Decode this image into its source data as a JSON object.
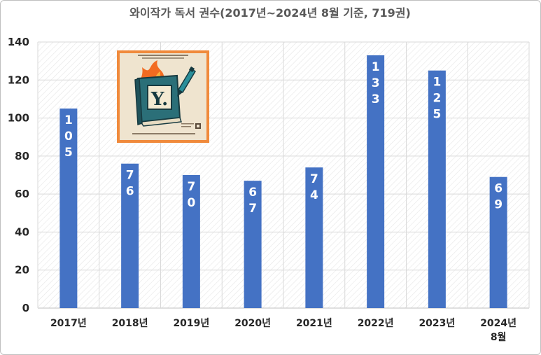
{
  "chart_data": {
    "type": "bar",
    "title": "와이작가 독서 권수(2017년~2024년 8월 기준, 719권)",
    "categories": [
      [
        "2017년"
      ],
      [
        "2018년"
      ],
      [
        "2019년"
      ],
      [
        "2020년"
      ],
      [
        "2021년"
      ],
      [
        "2022년"
      ],
      [
        "2023년"
      ],
      [
        "2024년",
        "8월"
      ]
    ],
    "values": [
      105,
      76,
      70,
      67,
      74,
      133,
      125,
      69
    ],
    "data_labels": [
      "105",
      "76",
      "70",
      "67",
      "74",
      "133",
      "125",
      "69"
    ],
    "ylim": [
      0,
      140
    ],
    "yticks": [
      0,
      20,
      40,
      60,
      80,
      100,
      120,
      140
    ],
    "xlabel": "",
    "ylabel": "",
    "grid": true,
    "legend": "none",
    "bar_color": "#4472c4"
  },
  "logo": {
    "icon": "book-with-pen-icon",
    "letter": "Y.",
    "frame_color": "#f08a3c",
    "background_color": "#efe4cf"
  }
}
